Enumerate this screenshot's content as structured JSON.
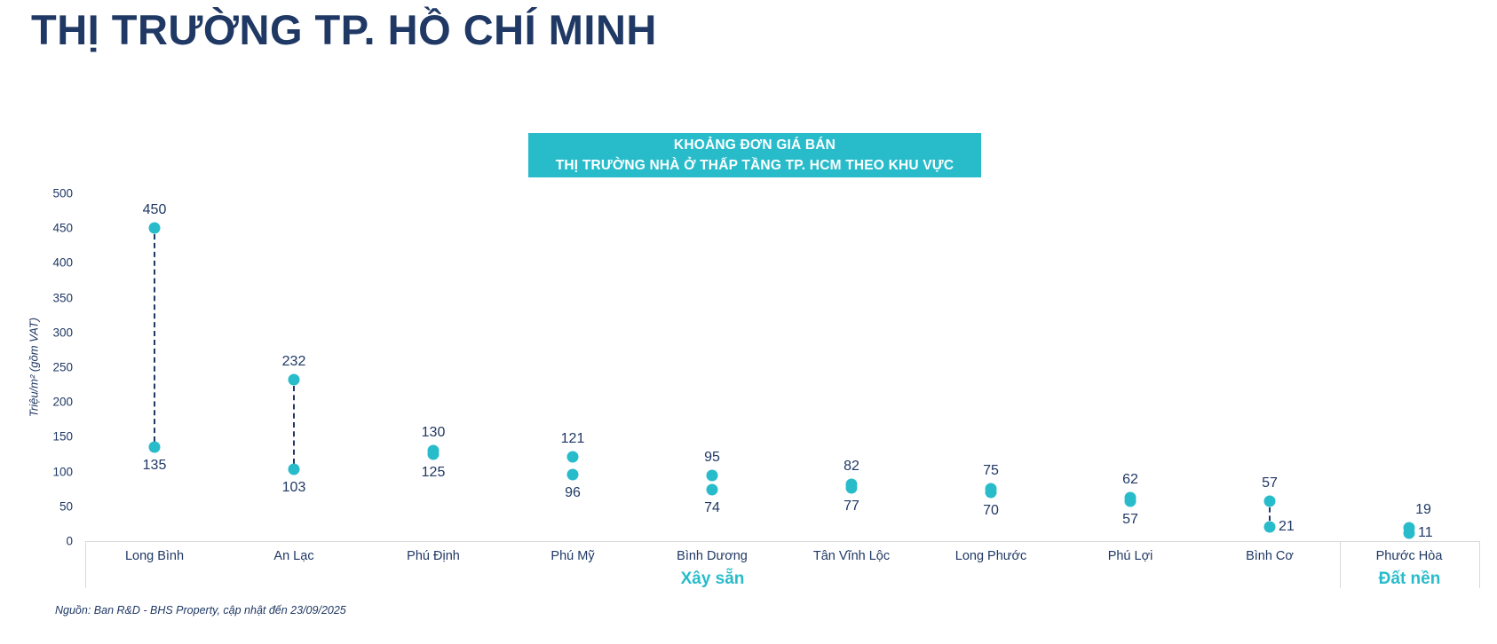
{
  "page_title": "THỊ TRƯỜNG TP. HỒ CHÍ MINH",
  "colors": {
    "navy": "#1F3864",
    "teal": "#28BCCB",
    "band_border": "#D9D9D9",
    "header_text": "#FFFFFF",
    "background": "#FFFFFF"
  },
  "chart_data": {
    "type": "dumbbell",
    "title_lines": [
      "KHOẢNG ĐƠN GIÁ BÁN",
      "THỊ TRƯỜNG NHÀ Ở THẤP TẦNG TP. HCM THEO KHU VỰC"
    ],
    "ylabel": "Triệu/m² (gồm VAT)",
    "ylim": [
      0,
      500
    ],
    "yticks": [
      500,
      450,
      400,
      350,
      300,
      250,
      200,
      150,
      100,
      50,
      0
    ],
    "grid": false,
    "legend": false,
    "categories": [
      {
        "name": "Long Bình",
        "group": "Xây sẵn",
        "max": 450,
        "min": 135,
        "max_label_pos": "top",
        "min_label_pos": "bottom"
      },
      {
        "name": "An Lạc",
        "group": "Xây sẵn",
        "max": 232,
        "min": 103,
        "max_label_pos": "top",
        "min_label_pos": "bottom"
      },
      {
        "name": "Phú Định",
        "group": "Xây sẵn",
        "max": 130,
        "min": 125,
        "max_label_pos": "top",
        "min_label_pos": "bottom"
      },
      {
        "name": "Phú Mỹ",
        "group": "Xây sẵn",
        "max": 121,
        "min": 96,
        "max_label_pos": "top",
        "min_label_pos": "bottom"
      },
      {
        "name": "Bình Dương",
        "group": "Xây sẵn",
        "max": 95,
        "min": 74,
        "max_label_pos": "top",
        "min_label_pos": "bottom"
      },
      {
        "name": "Tân Vĩnh Lộc",
        "group": "Xây sẵn",
        "max": 82,
        "min": 77,
        "max_label_pos": "top",
        "min_label_pos": "bottom"
      },
      {
        "name": "Long Phước",
        "group": "Xây sẵn",
        "max": 75,
        "min": 70,
        "max_label_pos": "top",
        "min_label_pos": "bottom"
      },
      {
        "name": "Phú Lợi",
        "group": "Xây sẵn",
        "max": 62,
        "min": 57,
        "max_label_pos": "top",
        "min_label_pos": "bottom"
      },
      {
        "name": "Bình Cơ",
        "group": "Xây sẵn",
        "max": 57,
        "min": 21,
        "max_label_pos": "top",
        "min_label_pos": "right"
      },
      {
        "name": "Phước Hòa",
        "group": "Đất nền",
        "max": 19,
        "min": 11,
        "max_label_pos": "top-right",
        "min_label_pos": "right"
      }
    ],
    "groups": [
      {
        "label": "Xây sẵn",
        "span": 9
      },
      {
        "label": "Đất nền",
        "span": 1
      }
    ]
  },
  "source": "Nguồn: Ban R&D - BHS Property, cập nhật đến 23/09/2025"
}
